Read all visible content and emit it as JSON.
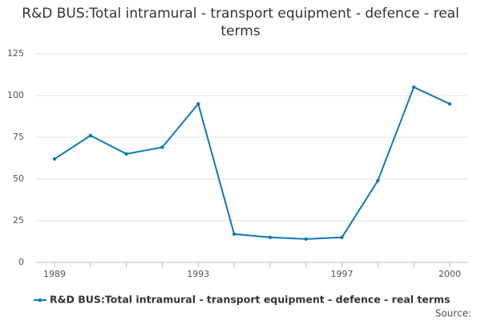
{
  "chart_data": {
    "type": "line",
    "title": "R&D BUS:Total intramural - transport equipment - defence - real terms",
    "x": [
      1989,
      1990,
      1991,
      1992,
      1993,
      1994,
      1995,
      1996,
      1997,
      1998,
      1999,
      2000
    ],
    "xlim": [
      1989,
      2000
    ],
    "xticks": [
      1989,
      1993,
      1997,
      2000
    ],
    "series": [
      {
        "name": "R&D BUS:Total intramural - transport equipment - defence - real terms",
        "color": "#0f78b8",
        "values": [
          62,
          76,
          65,
          69,
          95,
          17,
          15,
          14,
          15,
          49,
          105,
          95
        ]
      }
    ],
    "ylim": [
      0,
      125
    ],
    "yticks": [
      0,
      25,
      50,
      75,
      100,
      125
    ],
    "grid": true,
    "source_label": "Source:"
  }
}
